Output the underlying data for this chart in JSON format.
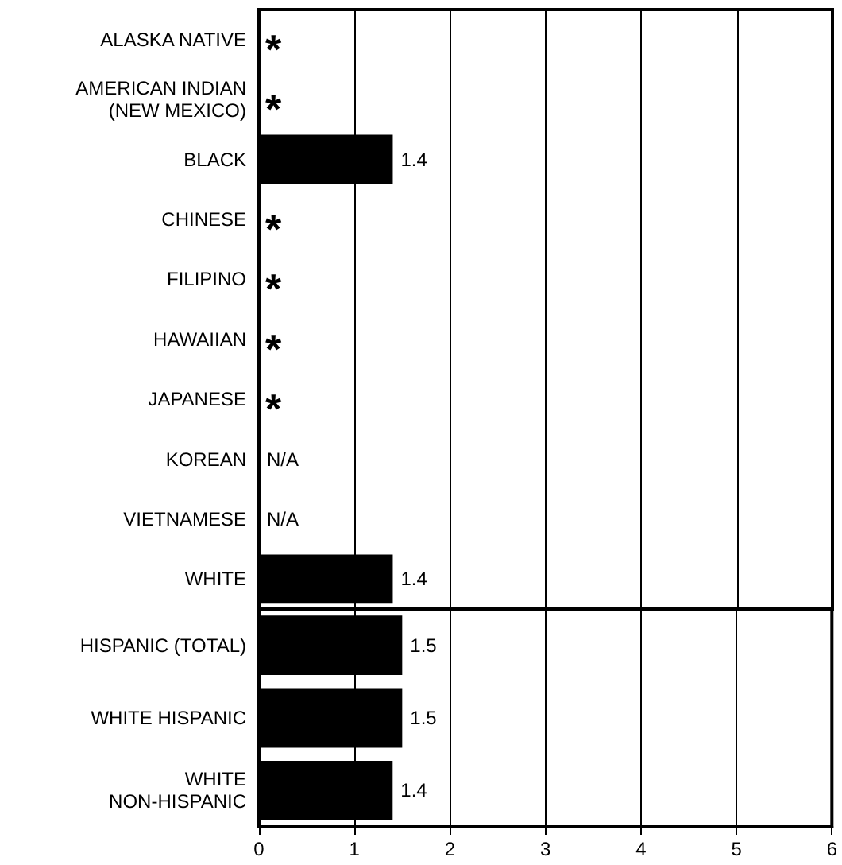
{
  "chart_data": [
    {
      "type": "bar",
      "orientation": "horizontal",
      "categories": [
        "ALASKA NATIVE",
        "AMERICAN INDIAN\n(NEW MEXICO)",
        "BLACK",
        "CHINESE",
        "FILIPINO",
        "HAWAIIAN",
        "JAPANESE",
        "KOREAN",
        "VIETNAMESE",
        "WHITE"
      ],
      "values": [
        null,
        null,
        1.4,
        null,
        null,
        null,
        null,
        null,
        null,
        1.4
      ],
      "value_labels": [
        "*",
        "*",
        "1.4",
        "*",
        "*",
        "*",
        "*",
        "N/A",
        "N/A",
        "1.4"
      ],
      "color": "#000000",
      "xlim": [
        0,
        6
      ],
      "xticks": [
        0,
        1,
        2,
        3,
        4,
        5,
        6
      ],
      "grid": "x",
      "tick_labels": "y"
    },
    {
      "type": "bar",
      "orientation": "horizontal",
      "categories": [
        "HISPANIC (TOTAL)",
        "WHITE HISPANIC",
        "WHITE\nNON-HISPANIC"
      ],
      "values": [
        1.5,
        1.5,
        1.4
      ],
      "color": "#000000",
      "xlim": [
        0,
        6
      ],
      "xticks": [
        0,
        1,
        2,
        3,
        4,
        5,
        6
      ],
      "grid": "x",
      "data_labels": true
    }
  ]
}
